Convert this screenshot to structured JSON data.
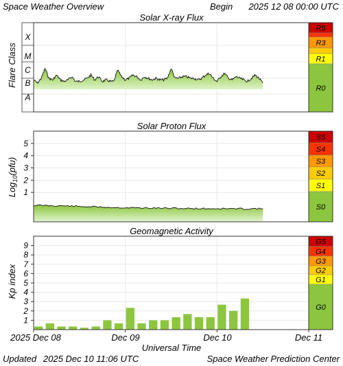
{
  "header": {
    "title": "Space Weather Overview",
    "begin_label": "Begin",
    "begin_value": "2025 12 08 00:00 UTC"
  },
  "footer": {
    "updated_label": "Updated",
    "updated_value": "2025 Dec 10 11:06 UTC",
    "credit": "Space Weather Prediction Center"
  },
  "x_axis": {
    "label": "Universal Time",
    "ticks": [
      "2025 Dec 08",
      "Dec 09",
      "Dec 10",
      "Dec 11"
    ]
  },
  "colors": {
    "fill_green": "#8cc63f",
    "fill_green_light": "#d9f0c0",
    "yellow": "#ffff00",
    "orange": "#ff9900",
    "red_orange": "#ff3300",
    "dark_red": "#cc0000",
    "frame": "#333333",
    "grid": "#e8e8e8"
  },
  "chart_data": [
    {
      "type": "area",
      "title": "Solar X-ray Flux",
      "ylabel": "Flare Class",
      "y_classes": [
        "X",
        "M",
        "C",
        "B",
        "A"
      ],
      "x_range_hours": [
        0,
        72
      ],
      "scale_levels": [
        {
          "label": "R5",
          "color": "#cc0000"
        },
        {
          "label": "R3",
          "color": "#ff9900"
        },
        {
          "label": "R1",
          "color": "#ffff00"
        },
        {
          "label": "R0",
          "color": "#8cc63f"
        }
      ],
      "series": [
        {
          "x_hours": [
            0,
            1,
            2,
            3,
            4,
            5,
            6,
            7,
            8,
            9,
            10,
            11,
            12,
            13,
            14,
            15,
            16,
            17,
            18,
            19,
            20,
            21,
            22,
            23,
            24,
            25,
            26,
            27,
            28,
            29,
            30,
            31,
            32,
            33,
            34,
            35,
            36,
            37,
            38,
            39,
            40,
            41,
            42,
            43,
            44,
            45,
            46,
            47,
            48,
            49,
            50,
            51,
            52,
            53,
            54,
            55,
            56,
            57,
            58,
            59,
            60
          ],
          "class_values": [
            1.9,
            1.7,
            2.0,
            2.6,
            2.0,
            1.9,
            2.2,
            1.9,
            1.8,
            1.9,
            2.1,
            1.8,
            1.8,
            1.9,
            2.0,
            2.2,
            1.9,
            2.1,
            1.8,
            1.9,
            1.8,
            1.8,
            2.5,
            2.1,
            1.9,
            2.0,
            2.2,
            2.1,
            1.9,
            2.1,
            2.0,
            1.9,
            2.0,
            1.9,
            1.9,
            2.0,
            2.6,
            2.0,
            2.0,
            2.1,
            2.1,
            2.0,
            2.0,
            1.9,
            2.0,
            2.2,
            2.3,
            2.0,
            1.8,
            2.1,
            2.3,
            2.0,
            1.9,
            2.1,
            2.0,
            1.9,
            1.8,
            2.0,
            2.2,
            2.0,
            1.7
          ]
        }
      ]
    },
    {
      "type": "area",
      "title": "Solar Proton Flux",
      "ylabel": "Log10(pfu)",
      "yticks": [
        1,
        2,
        3,
        4,
        5
      ],
      "ylim": [
        -1.4,
        6.0
      ],
      "x_range_hours": [
        0,
        72
      ],
      "scale_levels": [
        {
          "label": "S5",
          "color": "#cc0000"
        },
        {
          "label": "S4",
          "color": "#ff3300"
        },
        {
          "label": "S3",
          "color": "#ff9900"
        },
        {
          "label": "S2",
          "color": "#ffcc00"
        },
        {
          "label": "S1",
          "color": "#ffff00"
        },
        {
          "label": "S0",
          "color": "#8cc63f"
        }
      ],
      "series": [
        {
          "x_hours": [
            0,
            4,
            8,
            12,
            16,
            20,
            24,
            28,
            32,
            36,
            40,
            44,
            48,
            52,
            56,
            60
          ],
          "values": [
            -0.05,
            -0.08,
            -0.1,
            -0.15,
            -0.18,
            -0.22,
            -0.25,
            -0.27,
            -0.28,
            -0.3,
            -0.31,
            -0.32,
            -0.33,
            -0.33,
            -0.34,
            -0.32
          ]
        }
      ]
    },
    {
      "type": "bar",
      "title": "Geomagnetic Activity",
      "ylabel": "Kp index",
      "yticks": [
        1,
        2,
        3,
        4,
        5,
        6,
        7,
        8,
        9
      ],
      "ylim": [
        0,
        10
      ],
      "x_range_hours": [
        0,
        72
      ],
      "bar_width_hours": 2.2,
      "scale_levels": [
        {
          "label": "G5",
          "color": "#cc0000"
        },
        {
          "label": "G4",
          "color": "#ff3300"
        },
        {
          "label": "G3",
          "color": "#ff9900"
        },
        {
          "label": "G2",
          "color": "#ffcc00"
        },
        {
          "label": "G1",
          "color": "#ffff00"
        },
        {
          "label": "G0",
          "color": "#8cc63f"
        }
      ],
      "x_hours": [
        0,
        3,
        6,
        9,
        12,
        15,
        18,
        21,
        24,
        27,
        30,
        33,
        36,
        39,
        42,
        45,
        48,
        51,
        54
      ],
      "values": [
        0.33,
        0.67,
        0.33,
        0.33,
        0.2,
        0.33,
        1.0,
        0.67,
        2.33,
        0.67,
        1.0,
        1.0,
        1.33,
        1.67,
        1.33,
        1.33,
        2.67,
        2.0,
        3.33
      ]
    }
  ]
}
